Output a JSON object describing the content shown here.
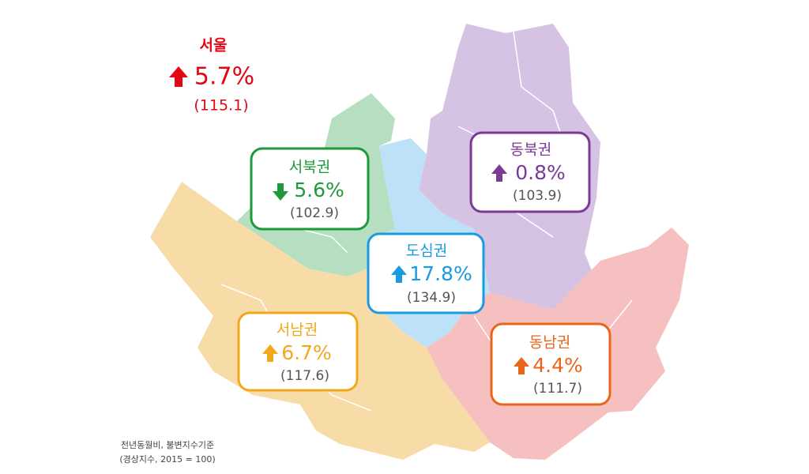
{
  "seoul": {
    "name": "서울",
    "change": "5.7%",
    "index": "(115.1)"
  },
  "regions": [
    {
      "name": "서북권",
      "change": "5.6%",
      "index": "(102.9)"
    },
    {
      "name": "동북권",
      "change": "0.8%",
      "index": "(103.9)"
    },
    {
      "name": "도심권",
      "change": "17.8%",
      "index": "(134.9)"
    },
    {
      "name": "서남권",
      "change": "6.7%",
      "index": "(117.6)"
    },
    {
      "name": "동남권",
      "change": "4.4%",
      "index": "(111.7)"
    }
  ],
  "footnote": {
    "line1": "전년동월비, 불변지수기준",
    "line2": "(경상지수, 2015 = 100)"
  }
}
